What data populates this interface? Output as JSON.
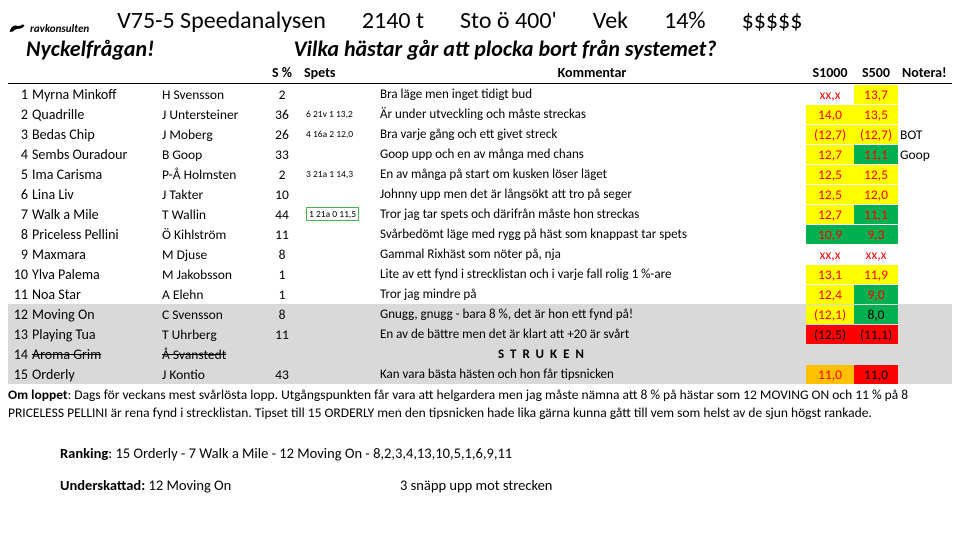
{
  "logo_text": "ravkonsulten",
  "header": {
    "race": "V75-5 Speedanalysen",
    "dist": "2140 t",
    "cond": "Sto ö 400'",
    "vek": "Vek",
    "pct": "14%",
    "money": "$$$$$"
  },
  "nyckel_label": "Nyckelfrågan!",
  "question": "Vilka hästar går att plocka bort från systemet?",
  "cols": {
    "spct": "S %",
    "spets": "Spets",
    "kom": "Kommentar",
    "s1000": "S1000",
    "s500": "S500",
    "not": "Notera!"
  },
  "colors": {
    "red": "#ff0000",
    "yellow": "#ffff00",
    "green": "#00b050",
    "grey": "#d9d9d9",
    "black": "#000000",
    "orange_bg": "#ffc000"
  },
  "rows": [
    {
      "n": "1",
      "horse": "Myrna Minkoff",
      "drv": "H Svensson",
      "spct": "2",
      "spets": "",
      "kom": "Bra läge men inget tidigt bud",
      "s1000": "xx,x",
      "s500": "13,7",
      "not": "",
      "s1000_bg": null,
      "s500_bg": "#ffff00",
      "s1000_fg": "#ff0000",
      "s500_fg": "#ff0000",
      "row_bg": null,
      "strike": false,
      "box": false
    },
    {
      "n": "2",
      "horse": "Quadrille",
      "drv": "J Untersteiner",
      "spct": "36",
      "spets": "6 21v 1 13,2",
      "kom": "Är under utveckling och måste streckas",
      "s1000": "14,0",
      "s500": "13,5",
      "not": "",
      "s1000_bg": "#ffff00",
      "s500_bg": "#ffff00",
      "s1000_fg": "#ff0000",
      "s500_fg": "#ff0000",
      "row_bg": null,
      "strike": false,
      "box": false
    },
    {
      "n": "3",
      "horse": "Bedas Chip",
      "drv": "J Moberg",
      "spct": "26",
      "spets": "4 16a 2 12,0",
      "kom": "Bra varje gång och ett givet streck",
      "s1000": "(12,7)",
      "s500": "(12,7)",
      "not": "BOT",
      "s1000_bg": "#ffff00",
      "s500_bg": "#ffff00",
      "s1000_fg": "#ff0000",
      "s500_fg": "#ff0000",
      "row_bg": null,
      "strike": false,
      "box": false
    },
    {
      "n": "4",
      "horse": "Sembs Ouradour",
      "drv": "B Goop",
      "spct": "33",
      "spets": "",
      "kom": "Goop upp och en av många med chans",
      "s1000": "12,7",
      "s500": "11,1",
      "not": "Goop",
      "s1000_bg": "#ffff00",
      "s500_bg": "#00b050",
      "s1000_fg": "#ff0000",
      "s500_fg": "#ff0000",
      "row_bg": null,
      "strike": false,
      "box": false
    },
    {
      "n": "5",
      "horse": "Ima Carisma",
      "drv": "P-Å Holmsten",
      "spct": "2",
      "spets": "3 21a 1 14,3",
      "kom": "En av många på start om kusken löser läget",
      "s1000": "12,5",
      "s500": "12,5",
      "not": "",
      "s1000_bg": "#ffff00",
      "s500_bg": "#ffff00",
      "s1000_fg": "#ff0000",
      "s500_fg": "#ff0000",
      "row_bg": null,
      "strike": false,
      "box": false
    },
    {
      "n": "6",
      "horse": "Lina Liv",
      "drv": "J Takter",
      "spct": "10",
      "spets": "",
      "kom": "Johnny upp men det är långsökt att tro på seger",
      "s1000": "12,5",
      "s500": "12,0",
      "not": "",
      "s1000_bg": "#ffff00",
      "s500_bg": "#ffff00",
      "s1000_fg": "#ff0000",
      "s500_fg": "#ff0000",
      "row_bg": null,
      "strike": false,
      "box": false
    },
    {
      "n": "7",
      "horse": "Walk a Mile",
      "drv": "T Wallin",
      "spct": "44",
      "spets": "1 21a 0 11,5",
      "kom": "Tror jag tar spets och därifrån måste hon streckas",
      "s1000": "12,7",
      "s500": "11,1",
      "not": "",
      "s1000_bg": "#ffff00",
      "s500_bg": "#00b050",
      "s1000_fg": "#ff0000",
      "s500_fg": "#ff0000",
      "row_bg": null,
      "strike": false,
      "box": true
    },
    {
      "n": "8",
      "horse": "Priceless Pellini",
      "drv": "Ö Kihlström",
      "spct": "11",
      "spets": "",
      "kom": "Svårbedömt läge med rygg på häst som knappast tar spets",
      "s1000": "10,9",
      "s500": "9,3",
      "not": "",
      "s1000_bg": "#00b050",
      "s500_bg": "#00b050",
      "s1000_fg": "#ff0000",
      "s500_fg": "#ff0000",
      "row_bg": null,
      "strike": false,
      "box": false
    },
    {
      "n": "9",
      "horse": "Maxmara",
      "drv": "M Djuse",
      "spct": "8",
      "spets": "",
      "kom": "Gammal Rixhäst som nöter på, nja",
      "s1000": "xx,x",
      "s500": "xx,x",
      "not": "",
      "s1000_bg": null,
      "s500_bg": null,
      "s1000_fg": "#ff0000",
      "s500_fg": "#ff0000",
      "row_bg": null,
      "strike": false,
      "box": false
    },
    {
      "n": "10",
      "horse": "Ylva Palema",
      "drv": "M Jakobsson",
      "spct": "1",
      "spets": "",
      "kom": "Lite av ett fynd i strecklistan och i varje fall rolig 1 %-are",
      "s1000": "13,1",
      "s500": "11,9",
      "not": "",
      "s1000_bg": "#ffff00",
      "s500_bg": "#ffff00",
      "s1000_fg": "#ff0000",
      "s500_fg": "#ff0000",
      "row_bg": null,
      "strike": false,
      "box": false
    },
    {
      "n": "11",
      "horse": "Noa Star",
      "drv": "A Elehn",
      "spct": "1",
      "spets": "",
      "kom": "Tror jag mindre på",
      "s1000": "12,4",
      "s500": "9,0",
      "not": "",
      "s1000_bg": "#ffff00",
      "s500_bg": "#00b050",
      "s1000_fg": "#ff0000",
      "s500_fg": "#ff0000",
      "row_bg": null,
      "strike": false,
      "box": false
    },
    {
      "n": "12",
      "horse": "Moving On",
      "drv": "C Svensson",
      "spct": "8",
      "spets": "",
      "kom": "Gnugg, gnugg - bara 8 %, det är hon ett fynd på!",
      "s1000": "(12,1)",
      "s500": "8,0",
      "not": "",
      "s1000_bg": "#ffff00",
      "s500_bg": "#00b050",
      "s1000_fg": "#ff0000",
      "s500_fg": "#000000",
      "row_bg": "#d9d9d9",
      "strike": false,
      "box": false
    },
    {
      "n": "13",
      "horse": "Playing Tua",
      "drv": "T Uhrberg",
      "spct": "11",
      "spets": "",
      "kom": "En av de bättre men det är klart att +20 är svårt",
      "s1000": "(12,5)",
      "s500": "(11,1)",
      "not": "",
      "s1000_bg": "#ff0000",
      "s500_bg": "#ff0000",
      "s1000_fg": "#000000",
      "s500_fg": "#000000",
      "row_bg": "#d9d9d9",
      "strike": false,
      "box": false
    },
    {
      "n": "14",
      "horse": "Aroma Grim",
      "drv": "Å Svanstedt",
      "spct": "",
      "spets": "",
      "kom": "S T R U K E N",
      "s1000": "",
      "s500": "",
      "not": "",
      "s1000_bg": null,
      "s500_bg": null,
      "s1000_fg": "#000000",
      "s500_fg": "#000000",
      "row_bg": "#d9d9d9",
      "strike": true,
      "box": false,
      "kom_struk": true
    },
    {
      "n": "15",
      "horse": "Orderly",
      "drv": "J Kontio",
      "spct": "43",
      "spets": "",
      "kom": "Kan vara bästa hästen och hon får tipsnicken",
      "s1000": "11,0",
      "s500": "11,0",
      "not": "",
      "s1000_bg": "#ffc000",
      "s500_bg": "#ff0000",
      "s1000_fg": "#ff0000",
      "s500_fg": "#000000",
      "row_bg": "#d9d9d9",
      "strike": false,
      "box": false
    }
  ],
  "footer": {
    "label": "Om loppet",
    "text": ": Dags för veckans mest svårlösta lopp. Utgångspunkten får vara att helgardera men jag måste nämna att 8 % på hästar som 12 MOVING ON och 11 % på 8 PRICELESS PELLINI är rena fynd i strecklistan. Tipset till 15 ORDERLY men den tipsnicken hade lika gärna kunna gått till vem som helst av de sjun högst rankade."
  },
  "ranking_label": "Ranking",
  "ranking": ": 15 Orderly - 7 Walk a Mile - 12 Moving On - 8,2,3,4,13,10,5,1,6,9,11",
  "under_label": "Underskattad:",
  "under_val": " 12 Moving On",
  "under_right": "3  snäpp upp mot strecken"
}
